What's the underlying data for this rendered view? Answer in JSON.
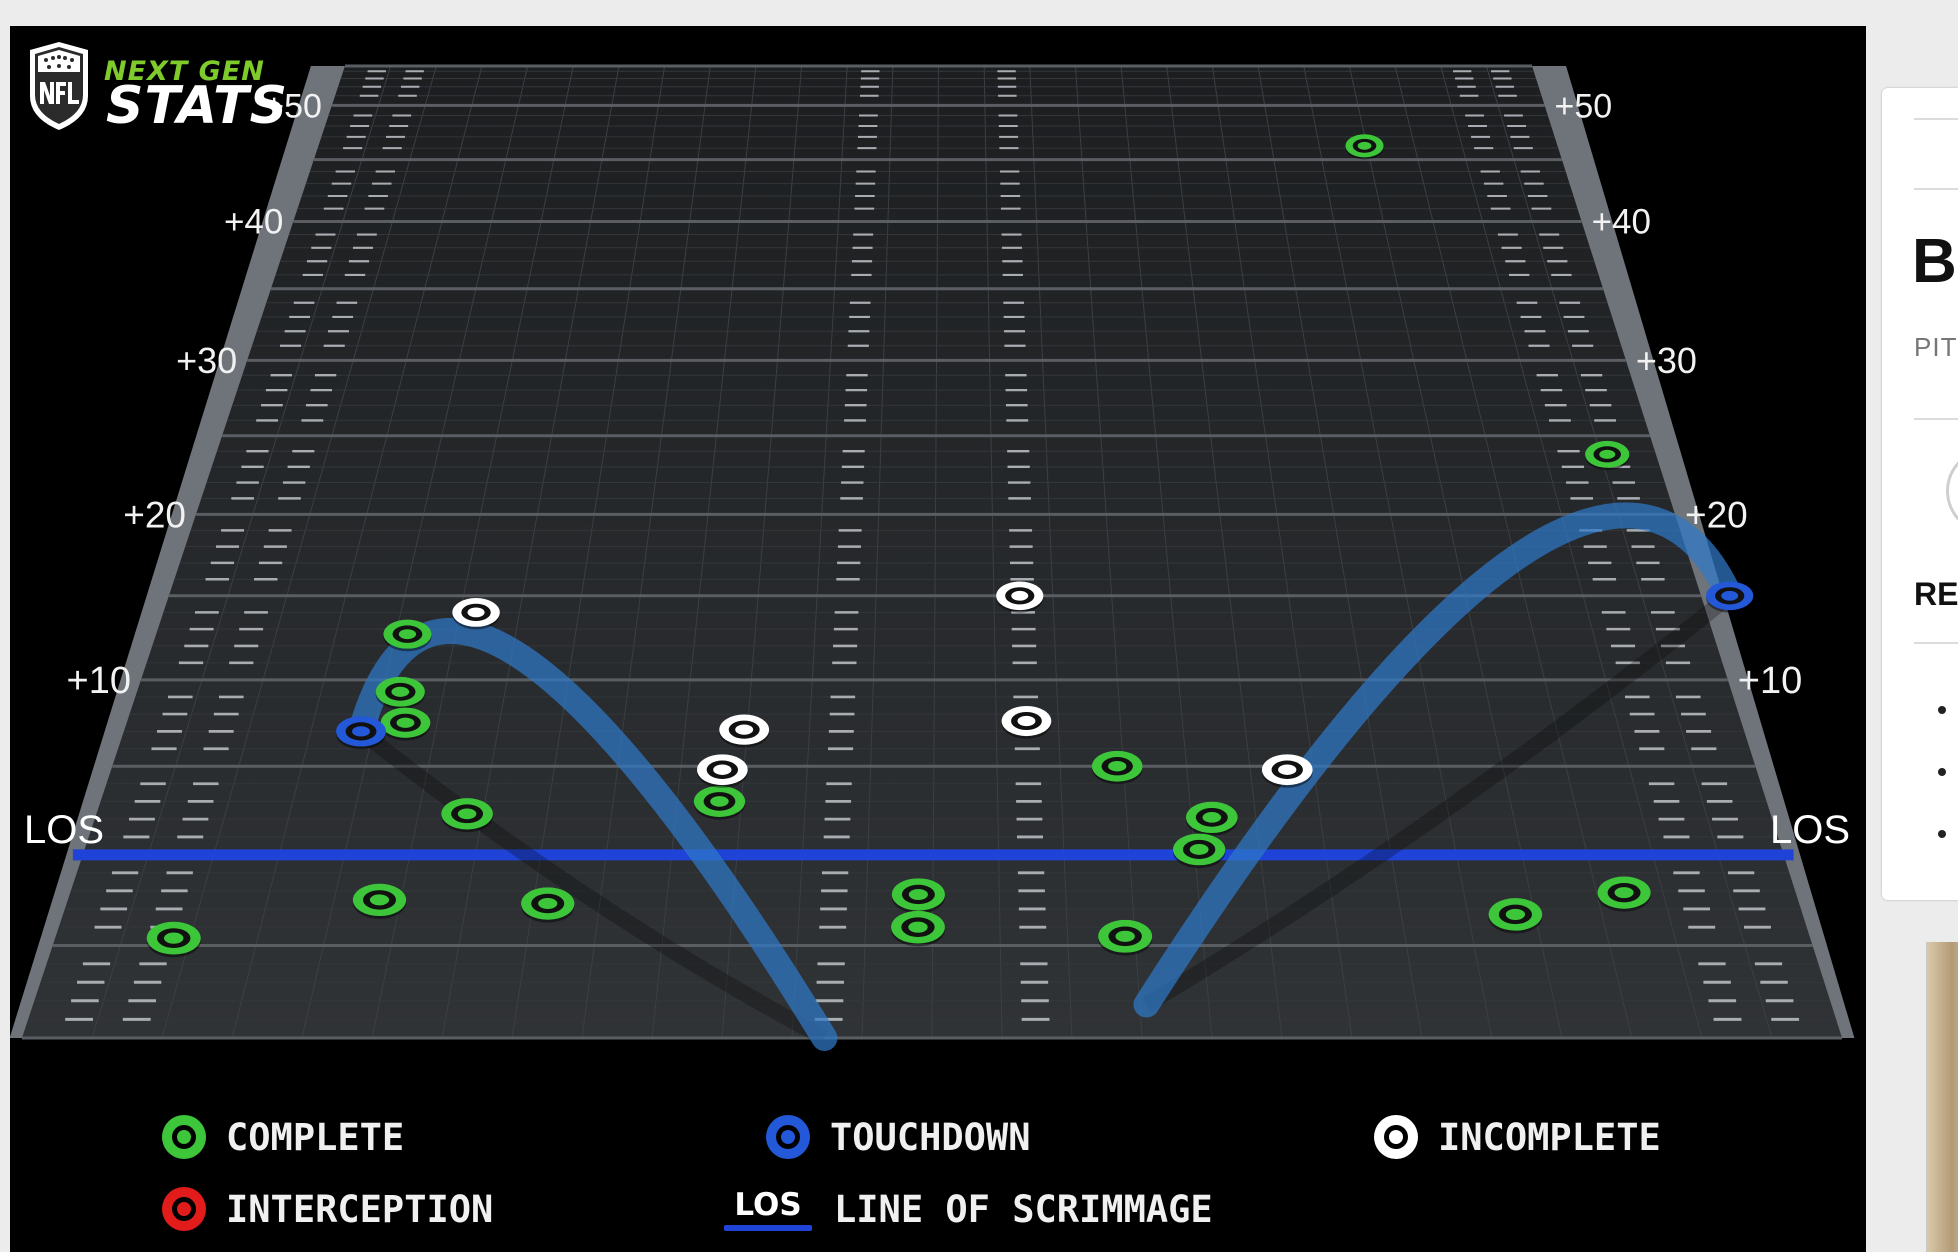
{
  "brand": {
    "league_logo_icon": "nfl-shield-icon",
    "line1": "NEXT GEN",
    "line2": "STATS"
  },
  "chart_data": {
    "type": "scatter",
    "title": "",
    "x_domain": [
      0,
      53.3
    ],
    "ylim": [
      -10,
      55
    ],
    "y_ticks": [
      {
        "value": 10,
        "label": "+10"
      },
      {
        "value": 20,
        "label": "+20"
      },
      {
        "value": 30,
        "label": "+30"
      },
      {
        "value": 40,
        "label": "+40"
      },
      {
        "value": 50,
        "label": "+50"
      }
    ],
    "los_label": "LOS",
    "series": [
      {
        "name": "COMPLETE",
        "color": "#3ec63a",
        "points": [
          {
            "x": 45.0,
            "y": 46.2
          },
          {
            "x": 51.5,
            "y": 23.8
          },
          {
            "x": 8.6,
            "y": 12.7
          },
          {
            "x": 8.8,
            "y": 9.3
          },
          {
            "x": 9.2,
            "y": 7.5
          },
          {
            "x": 11.8,
            "y": 2.3
          },
          {
            "x": 19.8,
            "y": 3.0
          },
          {
            "x": 32.6,
            "y": 5.0
          },
          {
            "x": 35.5,
            "y": 2.1
          },
          {
            "x": 35.0,
            "y": 0.3
          },
          {
            "x": 3.6,
            "y": -4.6
          },
          {
            "x": 9.6,
            "y": -2.5
          },
          {
            "x": 14.8,
            "y": -2.7
          },
          {
            "x": 26.2,
            "y": -2.2
          },
          {
            "x": 26.2,
            "y": -4.0
          },
          {
            "x": 32.5,
            "y": -4.5
          },
          {
            "x": 44.5,
            "y": -3.3
          },
          {
            "x": 48.0,
            "y": -2.1
          }
        ]
      },
      {
        "name": "TOUCHDOWN",
        "color": "#2358d8",
        "points": [
          {
            "x": 7.8,
            "y": 7.0
          },
          {
            "x": 54.3,
            "y": 15.0
          }
        ]
      },
      {
        "name": "INCOMPLETE",
        "color": "#ffffff",
        "points": [
          {
            "x": 10.8,
            "y": 14.0
          },
          {
            "x": 29.6,
            "y": 15.0
          },
          {
            "x": 20.4,
            "y": 7.1
          },
          {
            "x": 19.8,
            "y": 4.8
          },
          {
            "x": 29.7,
            "y": 7.6
          },
          {
            "x": 38.1,
            "y": 4.8
          }
        ]
      },
      {
        "name": "INTERCEPTION",
        "color": "#e21b1b",
        "points": []
      }
    ],
    "td_arcs": [
      {
        "from": {
          "x": 23.5,
          "y": -10
        },
        "peak": {
          "x": 10.5,
          "y": 13.5
        },
        "to": {
          "x": 7.8,
          "y": 7.0
        }
      },
      {
        "from": {
          "x": 33.0,
          "y": -8.2
        },
        "peak": {
          "x": 50.0,
          "y": 20.5
        },
        "to": {
          "x": 54.3,
          "y": 15.0
        }
      }
    ]
  },
  "legend": [
    {
      "label": "COMPLETE",
      "color": "#3ec63a"
    },
    {
      "label": "TOUCHDOWN",
      "color": "#2358d8"
    },
    {
      "label": "INCOMPLETE",
      "color": "#ffffff"
    },
    {
      "label": "INTERCEPTION",
      "color": "#e21b1b"
    },
    {
      "label": "LINE OF SCRIMMAGE",
      "mark": "LOS",
      "color": "#1f43d6"
    }
  ],
  "side_panel": {
    "title_fragment": "B",
    "subtitle_fragment": "PIT",
    "heading_fragment": "RE"
  }
}
